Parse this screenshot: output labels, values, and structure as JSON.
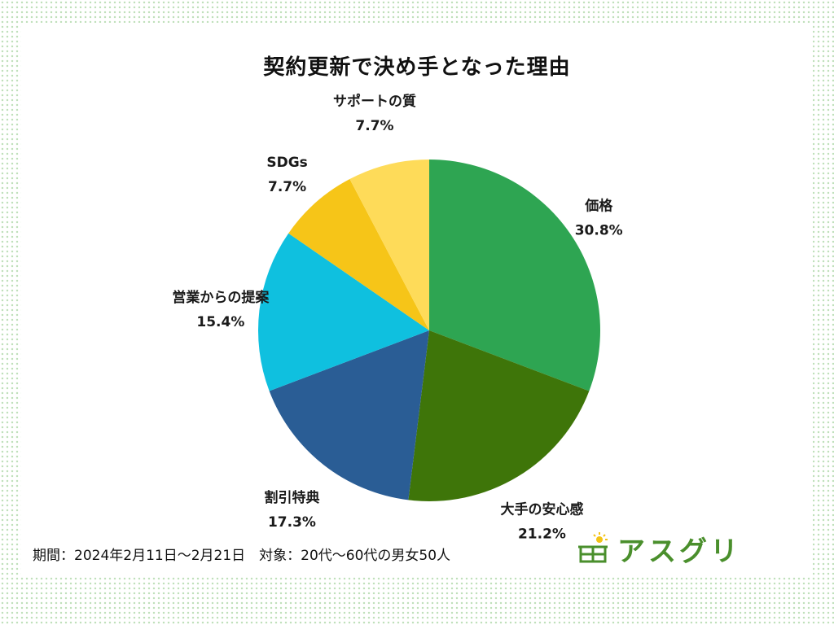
{
  "chart_data": {
    "type": "pie",
    "title": "契約更新で決め手となった理由",
    "categories": [
      "価格",
      "大手の安心感",
      "割引特典",
      "営業からの提案",
      "SDGs",
      "サポートの質"
    ],
    "values": [
      30.8,
      21.2,
      17.3,
      15.4,
      7.7,
      7.7
    ],
    "value_labels": [
      "30.8%",
      "21.2%",
      "17.3%",
      "15.4%",
      "7.7%",
      "7.7%"
    ],
    "colors": [
      "#2ea552",
      "#3e7509",
      "#2a5d95",
      "#0fc0df",
      "#f6c518",
      "#fedb59"
    ],
    "start": "top",
    "direction": "clockwise",
    "legend": "none"
  },
  "footer": {
    "text": "期間：2024年2月11日～2月21日　対象：20代～60代の男女50人"
  },
  "logo": {
    "text": "アスグリ",
    "colors": {
      "frame": "#4a8f2c",
      "sun": "#f3c316"
    }
  }
}
